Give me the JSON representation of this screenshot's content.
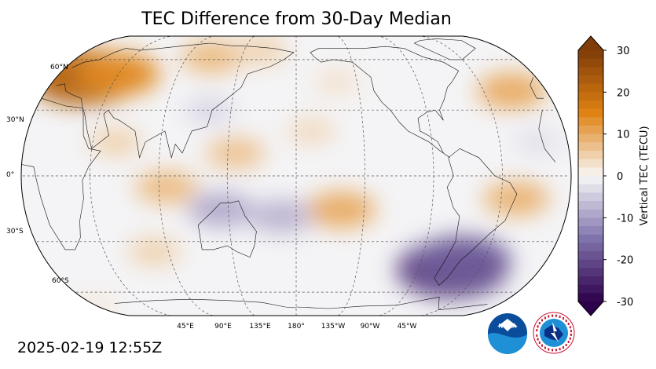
{
  "map": {
    "title": "TEC Difference from 30-Day Median",
    "timestamp": "2025-02-19 12:55Z",
    "lat_labels": [
      "60°N",
      "30°N",
      "0°",
      "30°S",
      "60°S"
    ],
    "lon_labels": [
      "45°E",
      "90°E",
      "135°E",
      "180°",
      "135°W",
      "90°W",
      "45°W"
    ],
    "colorbar": {
      "label": "Vertical TEC (TECU)",
      "ticks": [
        "30",
        "20",
        "10",
        "0",
        "-10",
        "-20",
        "-30"
      ],
      "min": -30,
      "max": 30,
      "colors": {
        "max": "#7f3b08",
        "mid_pos": "#e08214",
        "zero": "#f7f7f7",
        "mid_neg": "#8073ac",
        "min": "#2d004b"
      }
    },
    "anomalies": [
      {
        "region": "Europe",
        "lon": 20,
        "lat": 48,
        "value": 22
      },
      {
        "region": "Eastern Europe",
        "lon": 45,
        "lat": 50,
        "value": 14
      },
      {
        "region": "Siberia",
        "lon": 110,
        "lat": 62,
        "value": 8
      },
      {
        "region": "North Atlantic",
        "lon": -25,
        "lat": 40,
        "value": 10
      },
      {
        "region": "Indian Ocean",
        "lon": 95,
        "lat": -5,
        "value": 8
      },
      {
        "region": "South Pacific",
        "lon": -150,
        "lat": -15,
        "value": 10
      },
      {
        "region": "South America east",
        "lon": -35,
        "lat": -10,
        "value": 9
      },
      {
        "region": "Western Pacific",
        "lon": 140,
        "lat": 10,
        "value": 7
      },
      {
        "region": "Arabian Sea",
        "lon": 60,
        "lat": 15,
        "value": 5
      },
      {
        "region": "Central Pacific",
        "lon": -170,
        "lat": 20,
        "value": 4
      },
      {
        "region": "North Pacific",
        "lon": -150,
        "lat": 45,
        "value": 3
      },
      {
        "region": "Siberia north",
        "lon": 150,
        "lat": 68,
        "value": 5
      },
      {
        "region": "Asia",
        "lon": 120,
        "lat": 30,
        "value": -4
      },
      {
        "region": "Indian Ocean south",
        "lon": 80,
        "lat": -35,
        "value": 5
      },
      {
        "region": "Southern Atlantic",
        "lon": -65,
        "lat": -45,
        "value": -22
      },
      {
        "region": "Patagonia",
        "lon": -60,
        "lat": -40,
        "value": -18
      },
      {
        "region": "Australia north",
        "lon": 130,
        "lat": -15,
        "value": -9
      },
      {
        "region": "Pacific south band",
        "lon": 170,
        "lat": -18,
        "value": -8
      },
      {
        "region": "Atlantic tropics",
        "lon": -20,
        "lat": 15,
        "value": -3
      },
      {
        "region": "Antarctica",
        "lon": 0,
        "lat": -72,
        "value": 2
      }
    ],
    "logos": {
      "noaa_text": "NOAA"
    }
  }
}
